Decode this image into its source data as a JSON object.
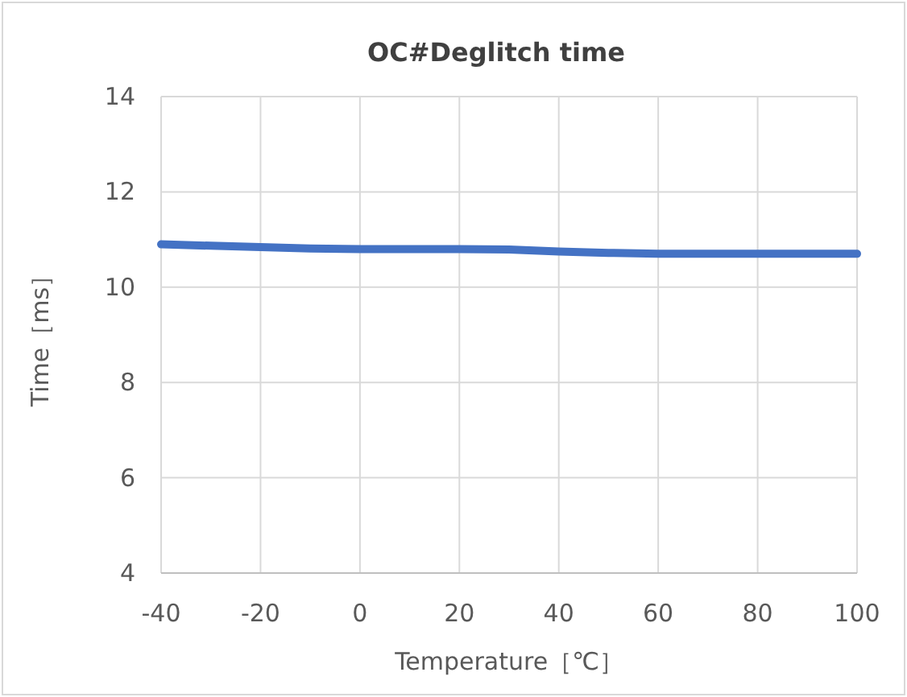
{
  "chart_data": {
    "type": "line",
    "title": "OC#Deglitch time",
    "xlabel": "Temperature［℃］",
    "ylabel": "Time［ms］",
    "x": [
      -40,
      -30,
      -20,
      -10,
      0,
      10,
      20,
      30,
      40,
      50,
      60,
      70,
      80,
      90,
      100
    ],
    "values": [
      10.9,
      10.87,
      10.84,
      10.81,
      10.8,
      10.8,
      10.8,
      10.79,
      10.75,
      10.72,
      10.7,
      10.7,
      10.7,
      10.7,
      10.7
    ],
    "color": "#4472c4",
    "xlim": [
      -40,
      100
    ],
    "ylim": [
      4,
      14
    ],
    "xticks": [
      -40,
      -20,
      0,
      20,
      40,
      60,
      80,
      100
    ],
    "yticks": [
      4,
      6,
      8,
      10,
      12,
      14
    ],
    "grid": true
  }
}
